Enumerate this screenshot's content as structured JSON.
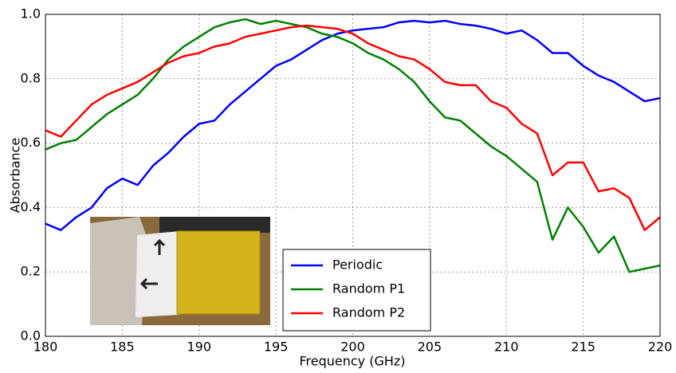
{
  "chart_data": {
    "type": "line",
    "xlabel": "Frequency (GHz)",
    "ylabel": "Absorbance",
    "x": [
      180,
      181,
      182,
      183,
      184,
      185,
      186,
      187,
      188,
      189,
      190,
      191,
      192,
      193,
      194,
      195,
      196,
      197,
      198,
      199,
      200,
      201,
      202,
      203,
      204,
      205,
      206,
      207,
      208,
      209,
      210,
      211,
      212,
      213,
      214,
      215,
      216,
      217,
      218,
      219,
      220
    ],
    "series": [
      {
        "name": "Periodic",
        "color": "#0000ff",
        "values": [
          0.35,
          0.33,
          0.37,
          0.4,
          0.46,
          0.49,
          0.47,
          0.53,
          0.57,
          0.62,
          0.66,
          0.67,
          0.72,
          0.76,
          0.8,
          0.84,
          0.86,
          0.89,
          0.92,
          0.94,
          0.95,
          0.955,
          0.96,
          0.975,
          0.98,
          0.975,
          0.98,
          0.97,
          0.965,
          0.955,
          0.94,
          0.95,
          0.92,
          0.88,
          0.88,
          0.84,
          0.81,
          0.79,
          0.76,
          0.73,
          0.74
        ]
      },
      {
        "name": "Random P1",
        "color": "#008000",
        "values": [
          0.58,
          0.6,
          0.61,
          0.65,
          0.69,
          0.72,
          0.75,
          0.8,
          0.86,
          0.9,
          0.93,
          0.96,
          0.975,
          0.985,
          0.97,
          0.98,
          0.97,
          0.96,
          0.94,
          0.93,
          0.91,
          0.88,
          0.86,
          0.83,
          0.79,
          0.73,
          0.68,
          0.67,
          0.63,
          0.59,
          0.56,
          0.52,
          0.48,
          0.3,
          0.4,
          0.34,
          0.26,
          0.31,
          0.2,
          0.21,
          0.22
        ]
      },
      {
        "name": "Random P2",
        "color": "#ff0000",
        "values": [
          0.64,
          0.62,
          0.67,
          0.72,
          0.75,
          0.77,
          0.79,
          0.82,
          0.85,
          0.87,
          0.88,
          0.9,
          0.91,
          0.93,
          0.94,
          0.95,
          0.96,
          0.965,
          0.96,
          0.955,
          0.94,
          0.91,
          0.89,
          0.87,
          0.86,
          0.83,
          0.79,
          0.78,
          0.78,
          0.73,
          0.71,
          0.66,
          0.63,
          0.5,
          0.54,
          0.54,
          0.45,
          0.46,
          0.43,
          0.33,
          0.37
        ]
      }
    ],
    "xlim": [
      180,
      220
    ],
    "xticks": [
      180,
      185,
      190,
      195,
      200,
      205,
      210,
      215,
      220
    ],
    "ylim": [
      0,
      1
    ],
    "yticks": [
      {
        "value": 0,
        "label": "0.0"
      },
      0.2,
      0.4,
      0.6,
      0.8,
      {
        "value": 1,
        "label": "1.0"
      }
    ],
    "grid": true,
    "legend": "lower center"
  }
}
